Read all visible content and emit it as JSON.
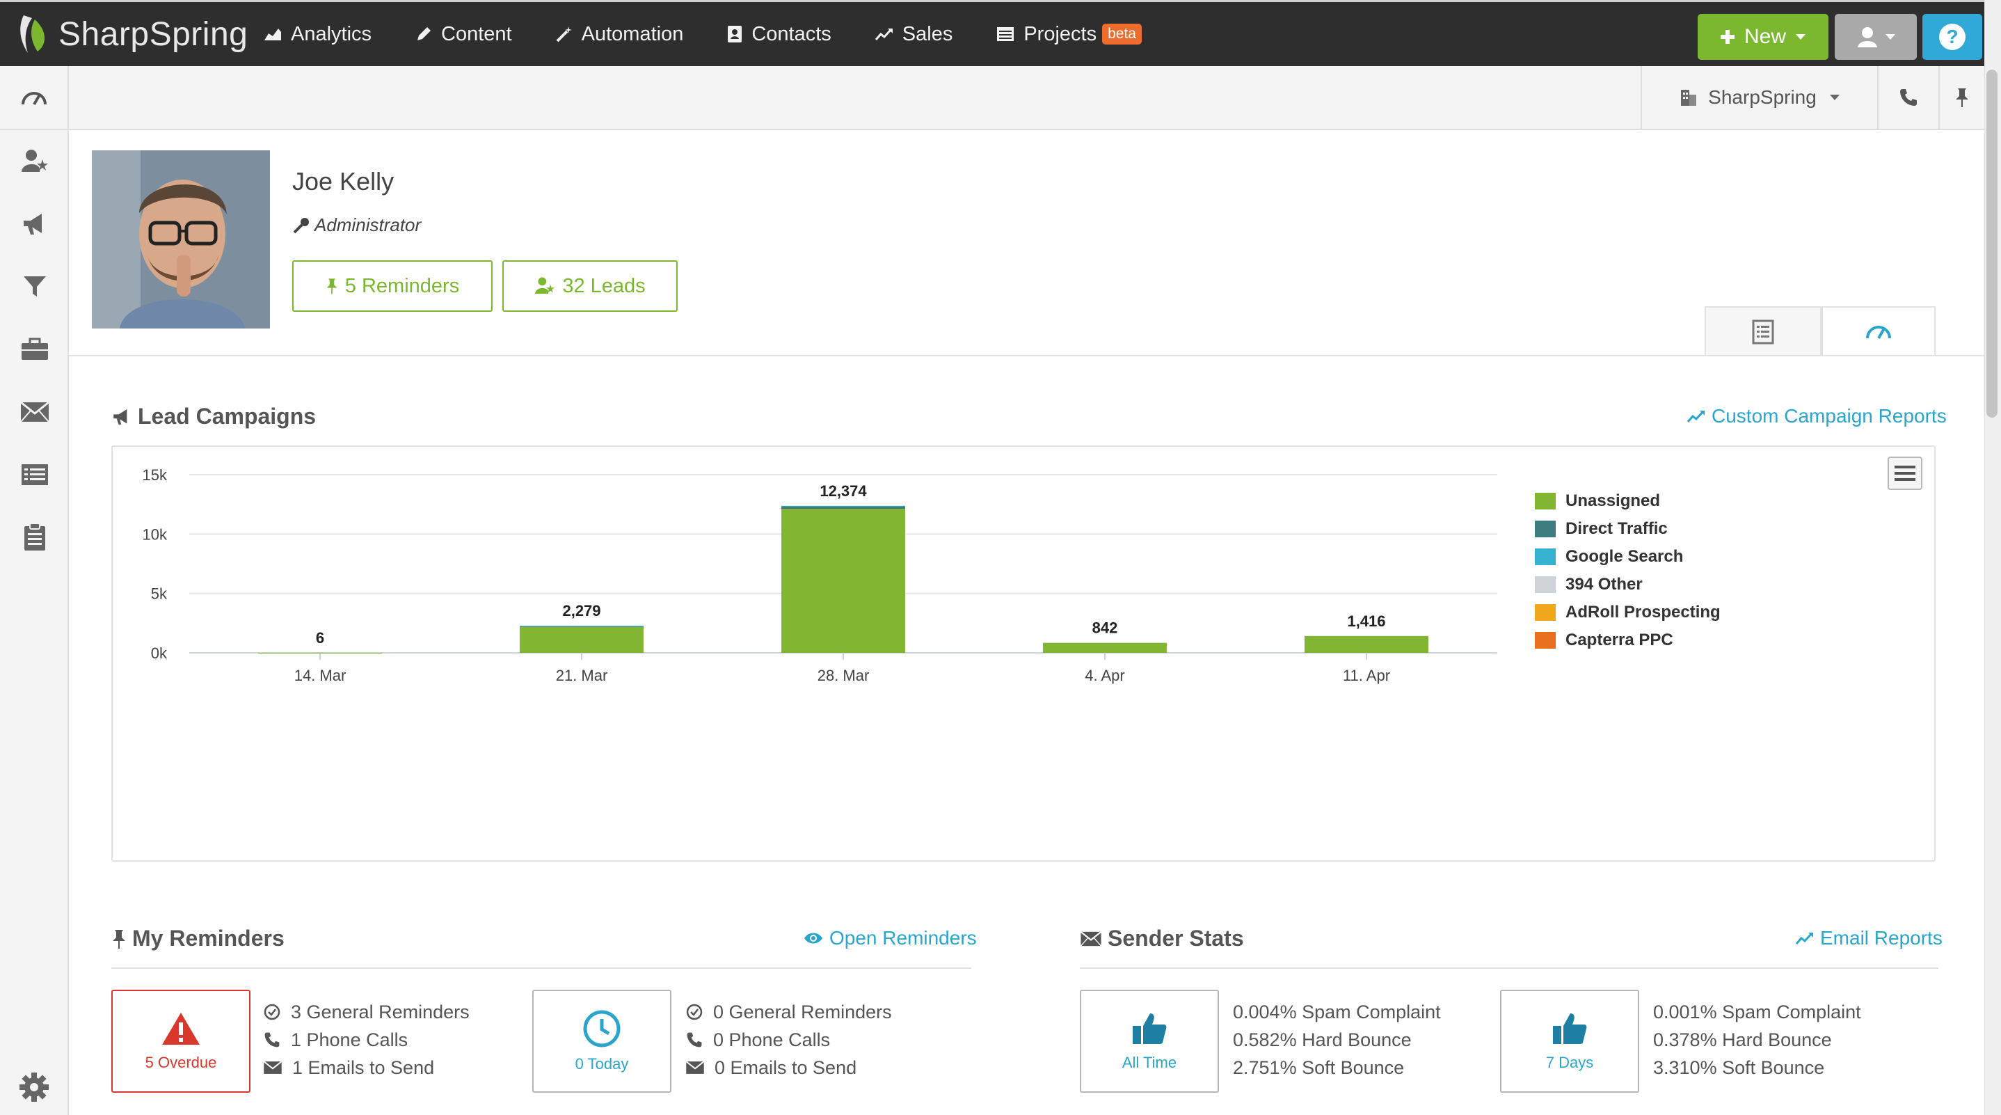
{
  "brand": {
    "name": "SharpSpring",
    "accent": "#7cb82f",
    "link_color": "#2aa5cc",
    "alert": "#d9372b"
  },
  "nav": {
    "items": [
      {
        "label": "Analytics",
        "icon": "area-chart-icon"
      },
      {
        "label": "Content",
        "icon": "pencil-icon"
      },
      {
        "label": "Automation",
        "icon": "magic-wand-icon"
      },
      {
        "label": "Contacts",
        "icon": "contact-book-icon"
      },
      {
        "label": "Sales",
        "icon": "trend-line-icon"
      },
      {
        "label": "Projects",
        "icon": "list-icon",
        "badge": "beta"
      }
    ],
    "new_label": "New"
  },
  "subbar": {
    "company": "SharpSpring"
  },
  "profile": {
    "name": "Joe Kelly",
    "role": "Administrator",
    "reminders_btn": "5 Reminders",
    "leads_btn": "32 Leads"
  },
  "campaigns": {
    "title": "Lead Campaigns",
    "link": "Custom Campaign Reports"
  },
  "chart_data": {
    "type": "bar",
    "stacked": true,
    "categories": [
      "14. Mar",
      "21. Mar",
      "28. Mar",
      "4. Apr",
      "11. Apr"
    ],
    "y_ticks": [
      "0k",
      "5k",
      "10k",
      "15k"
    ],
    "ylim": [
      0,
      15000
    ],
    "grid": true,
    "legend_position": "right",
    "totals": [
      6,
      2279,
      12374,
      842,
      1416
    ],
    "total_labels": [
      "6",
      "2,279",
      "12,374",
      "842",
      "1,416"
    ],
    "series": [
      {
        "name": "Unassigned",
        "color": "#82b531",
        "values": [
          6,
          2179,
          12124,
          842,
          1416
        ]
      },
      {
        "name": "Direct Traffic",
        "color": "#3d7d7f",
        "values": [
          0,
          80,
          230,
          0,
          0
        ]
      },
      {
        "name": "Google Search",
        "color": "#35b2cf",
        "values": [
          0,
          20,
          20,
          0,
          0
        ]
      },
      {
        "name": "394 Other",
        "color": "#cfd2d6",
        "values": [
          0,
          0,
          0,
          0,
          0
        ]
      },
      {
        "name": "AdRoll Prospecting",
        "color": "#f0a81c",
        "values": [
          0,
          0,
          0,
          0,
          0
        ]
      },
      {
        "name": "Capterra PPC",
        "color": "#e8701e",
        "values": [
          0,
          0,
          0,
          0,
          0
        ]
      }
    ]
  },
  "reminders": {
    "title": "My Reminders",
    "link": "Open Reminders",
    "overdue": {
      "label": "5 Overdue",
      "rows": [
        "3 General Reminders",
        "1 Phone Calls",
        "1 Emails to Send"
      ]
    },
    "today": {
      "label": "0 Today",
      "rows": [
        "0 General Reminders",
        "0 Phone Calls",
        "0 Emails to Send"
      ]
    }
  },
  "sender": {
    "title": "Sender Stats",
    "link": "Email Reports",
    "all_time": {
      "label": "All Time",
      "rows": [
        "0.004% Spam Complaint",
        "0.582% Hard Bounce",
        "2.751% Soft Bounce"
      ]
    },
    "seven_days": {
      "label": "7 Days",
      "rows": [
        "0.001% Spam Complaint",
        "0.378% Hard Bounce",
        "3.310% Soft Bounce"
      ]
    }
  }
}
